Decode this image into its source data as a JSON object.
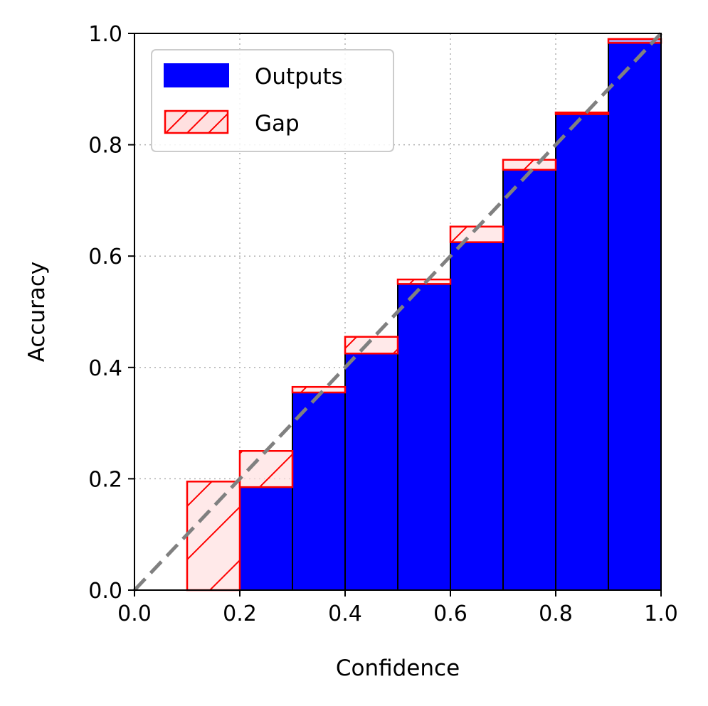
{
  "chart_data": {
    "type": "bar",
    "title": "",
    "xlabel": "Confidence",
    "ylabel": "Accuracy",
    "xlim": [
      0.0,
      1.0
    ],
    "ylim": [
      0.0,
      1.0
    ],
    "xticks": [
      "0.0",
      "0.2",
      "0.4",
      "0.6",
      "0.8",
      "1.0"
    ],
    "yticks": [
      "0.0",
      "0.2",
      "0.4",
      "0.6",
      "0.8",
      "1.0"
    ],
    "grid": true,
    "legend_position": "top-left",
    "bins": [
      {
        "start": 0.1,
        "end": 0.2,
        "accuracy": 0.0,
        "confidence": 0.195
      },
      {
        "start": 0.2,
        "end": 0.3,
        "accuracy": 0.185,
        "confidence": 0.25
      },
      {
        "start": 0.3,
        "end": 0.4,
        "accuracy": 0.355,
        "confidence": 0.365
      },
      {
        "start": 0.4,
        "end": 0.5,
        "accuracy": 0.425,
        "confidence": 0.455
      },
      {
        "start": 0.5,
        "end": 0.6,
        "accuracy": 0.55,
        "confidence": 0.558
      },
      {
        "start": 0.6,
        "end": 0.7,
        "accuracy": 0.625,
        "confidence": 0.653
      },
      {
        "start": 0.7,
        "end": 0.8,
        "accuracy": 0.755,
        "confidence": 0.773
      },
      {
        "start": 0.8,
        "end": 0.9,
        "accuracy": 0.855,
        "confidence": 0.858
      },
      {
        "start": 0.9,
        "end": 1.0,
        "accuracy": 0.99,
        "confidence": 0.983
      }
    ],
    "series": [
      {
        "name": "Outputs",
        "color": "#0000ff"
      },
      {
        "name": "Gap",
        "color": "#ff0000",
        "fill": "#ffe0e0"
      }
    ],
    "reference_line": {
      "from": [
        0.0,
        0.0
      ],
      "to": [
        1.0,
        1.0
      ],
      "color": "#808080",
      "style": "dashed"
    }
  }
}
